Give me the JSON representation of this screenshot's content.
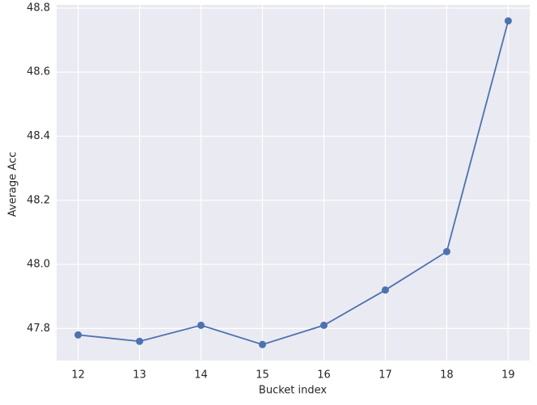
{
  "chart_data": {
    "type": "line",
    "x_label": "Bucket index",
    "y_label": "Average Acc",
    "x": [
      12,
      13,
      14,
      15,
      16,
      17,
      18,
      19
    ],
    "series": [
      {
        "color": "#4c72b0",
        "values": [
          47.78,
          47.76,
          47.81,
          47.75,
          47.81,
          47.92,
          48.04,
          48.76
        ]
      }
    ],
    "xlim": [
      11.65,
      19.35
    ],
    "ylim": [
      47.7,
      48.81
    ],
    "xticks": [
      12,
      13,
      14,
      15,
      16,
      17,
      18,
      19
    ],
    "yticks": [
      47.8,
      {
        "value": 48,
        "label": "48.0"
      },
      48.2,
      48.4,
      48.6,
      48.8
    ],
    "grid": true,
    "background": "#eaeaf2"
  }
}
